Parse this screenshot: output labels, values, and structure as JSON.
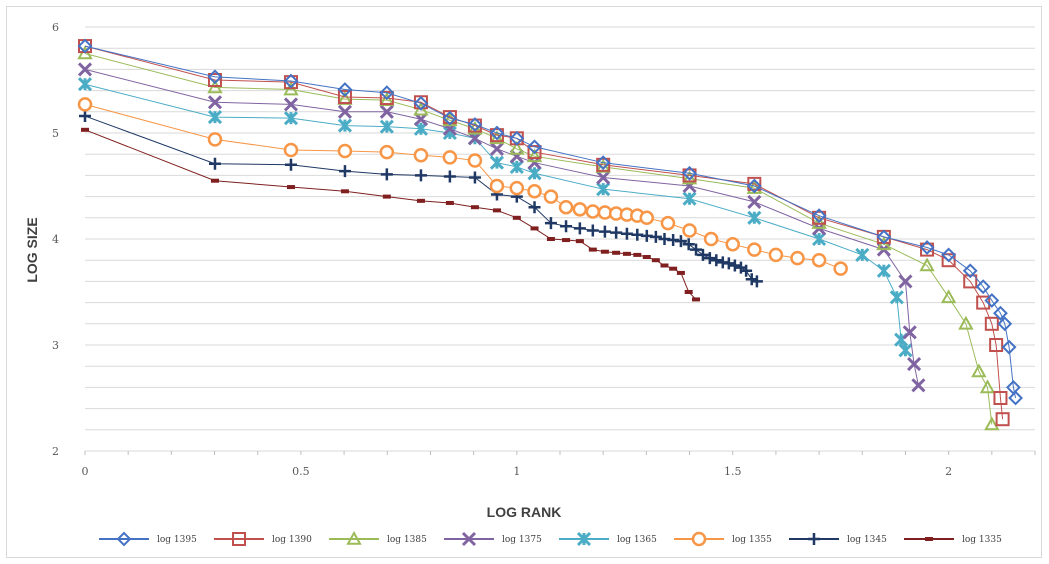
{
  "chart_data": {
    "type": "scatter",
    "title": "",
    "xlabel": "LOG RANK",
    "ylabel": "LOG SIZE",
    "xlim": [
      0,
      2.2
    ],
    "ylim": [
      2,
      6
    ],
    "x_ticks": [
      "0",
      "0.5",
      "1",
      "1.5",
      "2"
    ],
    "y_ticks": [
      "2",
      "3",
      "4",
      "5",
      "6"
    ],
    "grid": "horizontal",
    "legend_position": "bottom",
    "series": [
      {
        "name": "log 1395",
        "color": "#4472c4",
        "marker": "diamond",
        "x": [
          0,
          0.301,
          0.477,
          0.602,
          0.699,
          0.778,
          0.845,
          0.903,
          0.954,
          1,
          1.041,
          1.2,
          1.4,
          1.55,
          1.7,
          1.85,
          1.95,
          2.0,
          2.05,
          2.08,
          2.1,
          2.12,
          2.13,
          2.14,
          2.15,
          2.155
        ],
        "y": [
          5.82,
          5.53,
          5.49,
          5.41,
          5.38,
          5.28,
          5.14,
          5.08,
          5.0,
          4.95,
          4.87,
          4.72,
          4.62,
          4.5,
          4.22,
          4.02,
          3.92,
          3.85,
          3.7,
          3.55,
          3.42,
          3.3,
          3.2,
          2.98,
          2.6,
          2.5
        ]
      },
      {
        "name": "log 1390",
        "color": "#c0504d",
        "marker": "square",
        "x": [
          0,
          0.301,
          0.477,
          0.602,
          0.699,
          0.778,
          0.845,
          0.903,
          0.954,
          1,
          1.041,
          1.2,
          1.4,
          1.55,
          1.7,
          1.85,
          1.95,
          2.0,
          2.05,
          2.08,
          2.1,
          2.11,
          2.12,
          2.125
        ],
        "y": [
          5.82,
          5.5,
          5.48,
          5.34,
          5.33,
          5.29,
          5.15,
          5.07,
          4.98,
          4.95,
          4.82,
          4.7,
          4.6,
          4.52,
          4.2,
          4.02,
          3.9,
          3.8,
          3.6,
          3.4,
          3.2,
          3.0,
          2.5,
          2.3
        ]
      },
      {
        "name": "log 1385",
        "color": "#9bbb59",
        "marker": "triangle",
        "x": [
          0,
          0.301,
          0.477,
          0.602,
          0.699,
          0.778,
          0.845,
          0.903,
          0.954,
          1,
          1.041,
          1.2,
          1.4,
          1.55,
          1.7,
          1.85,
          1.95,
          2.0,
          2.04,
          2.07,
          2.09,
          2.1
        ],
        "y": [
          5.75,
          5.43,
          5.41,
          5.32,
          5.31,
          5.22,
          5.12,
          5.04,
          4.95,
          4.85,
          4.78,
          4.68,
          4.57,
          4.48,
          4.15,
          3.95,
          3.75,
          3.45,
          3.2,
          2.75,
          2.6,
          2.25
        ]
      },
      {
        "name": "log 1375",
        "color": "#8064a2",
        "marker": "x",
        "x": [
          0,
          0.301,
          0.477,
          0.602,
          0.699,
          0.778,
          0.845,
          0.903,
          0.954,
          1,
          1.041,
          1.2,
          1.4,
          1.55,
          1.7,
          1.85,
          1.9,
          1.91,
          1.92,
          1.93
        ],
        "y": [
          5.6,
          5.29,
          5.27,
          5.2,
          5.2,
          5.13,
          5.04,
          4.95,
          4.85,
          4.78,
          4.72,
          4.58,
          4.5,
          4.35,
          4.1,
          3.9,
          3.6,
          3.12,
          2.82,
          2.62
        ]
      },
      {
        "name": "log 1365",
        "color": "#4bacc6",
        "marker": "star",
        "x": [
          0,
          0.301,
          0.477,
          0.602,
          0.699,
          0.778,
          0.845,
          0.903,
          0.954,
          1,
          1.041,
          1.2,
          1.4,
          1.55,
          1.7,
          1.8,
          1.85,
          1.88,
          1.89,
          1.9
        ],
        "y": [
          5.46,
          5.15,
          5.14,
          5.07,
          5.06,
          5.04,
          5.0,
          4.95,
          4.72,
          4.68,
          4.62,
          4.47,
          4.38,
          4.2,
          4.0,
          3.85,
          3.7,
          3.45,
          3.05,
          2.95
        ]
      },
      {
        "name": "log 1355",
        "color": "#f79646",
        "marker": "circle",
        "x": [
          0,
          0.301,
          0.477,
          0.602,
          0.699,
          0.778,
          0.845,
          0.903,
          0.954,
          1,
          1.041,
          1.079,
          1.114,
          1.146,
          1.176,
          1.204,
          1.23,
          1.255,
          1.279,
          1.301,
          1.35,
          1.4,
          1.45,
          1.5,
          1.55,
          1.6,
          1.65,
          1.7,
          1.75
        ],
        "y": [
          5.27,
          4.94,
          4.84,
          4.83,
          4.82,
          4.79,
          4.77,
          4.74,
          4.5,
          4.48,
          4.45,
          4.4,
          4.3,
          4.28,
          4.26,
          4.25,
          4.24,
          4.23,
          4.22,
          4.2,
          4.15,
          4.08,
          4.0,
          3.95,
          3.9,
          3.85,
          3.82,
          3.8,
          3.72
        ]
      },
      {
        "name": "log 1345",
        "color": "#1f3864",
        "marker": "plus",
        "x": [
          0,
          0.301,
          0.477,
          0.602,
          0.699,
          0.778,
          0.845,
          0.903,
          0.954,
          1,
          1.041,
          1.079,
          1.114,
          1.146,
          1.176,
          1.204,
          1.23,
          1.255,
          1.279,
          1.301,
          1.322,
          1.342,
          1.362,
          1.38,
          1.398,
          1.415,
          1.431,
          1.447,
          1.462,
          1.477,
          1.491,
          1.505,
          1.519,
          1.531,
          1.544,
          1.556
        ],
        "y": [
          5.16,
          4.71,
          4.7,
          4.64,
          4.61,
          4.6,
          4.59,
          4.58,
          4.42,
          4.4,
          4.3,
          4.15,
          4.12,
          4.1,
          4.08,
          4.07,
          4.06,
          4.05,
          4.04,
          4.03,
          4.02,
          4.0,
          3.99,
          3.98,
          3.95,
          3.9,
          3.85,
          3.82,
          3.8,
          3.78,
          3.77,
          3.75,
          3.73,
          3.7,
          3.62,
          3.6
        ]
      },
      {
        "name": "log 1335",
        "color": "#7f1f1f",
        "marker": "dash",
        "x": [
          0,
          0.301,
          0.477,
          0.602,
          0.699,
          0.778,
          0.845,
          0.903,
          0.954,
          1,
          1.041,
          1.079,
          1.114,
          1.146,
          1.176,
          1.204,
          1.23,
          1.255,
          1.279,
          1.301,
          1.322,
          1.342,
          1.362,
          1.38,
          1.398,
          1.415
        ],
        "y": [
          5.03,
          4.55,
          4.49,
          4.45,
          4.4,
          4.36,
          4.34,
          4.3,
          4.27,
          4.2,
          4.1,
          4.0,
          3.99,
          3.98,
          3.9,
          3.88,
          3.87,
          3.86,
          3.85,
          3.83,
          3.8,
          3.75,
          3.72,
          3.68,
          3.5,
          3.43
        ]
      }
    ]
  }
}
